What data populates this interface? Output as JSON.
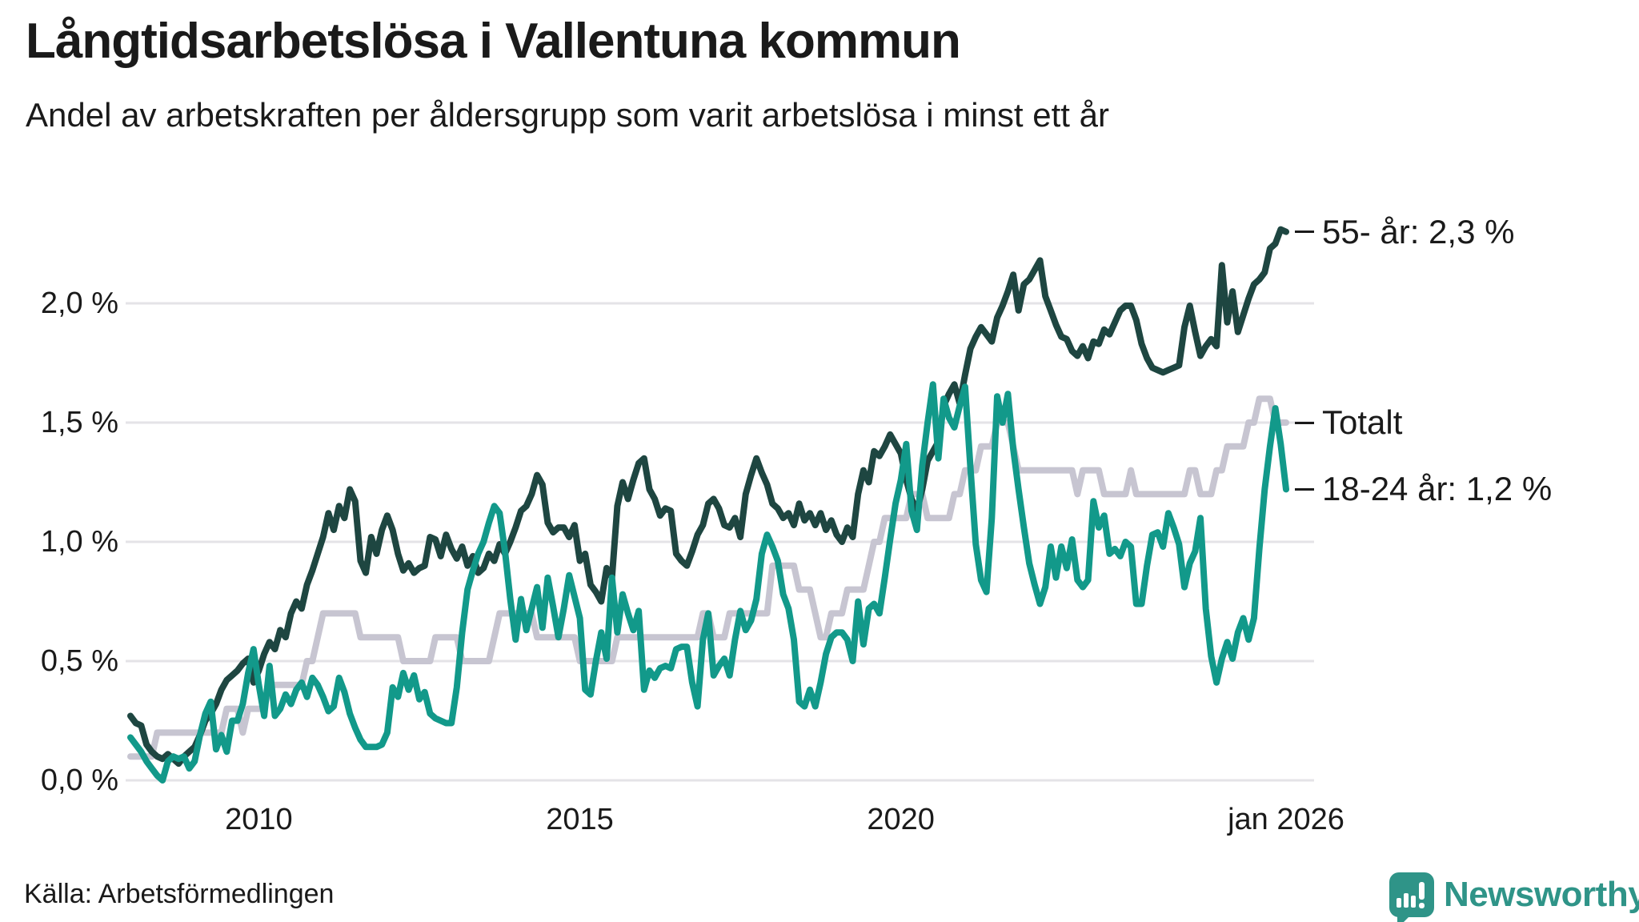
{
  "header": {
    "title": "Långtidsarbetslösa i Vallentuna kommun",
    "subtitle": "Andel av arbetskraften per åldersgrupp som varit arbetslösa i minst ett år"
  },
  "footer": {
    "source": "Källa: Arbetsförmedlingen",
    "brand": "Newsworthy"
  },
  "colors": {
    "series_55": "#1e4641",
    "series_total": "#c7c5d1",
    "series_young": "#12998a",
    "grid": "#e4e3e7",
    "text": "#1a1a1a",
    "brand": "#2f9488"
  },
  "chart_data": {
    "type": "line",
    "title": "Långtidsarbetslösa i Vallentuna kommun",
    "subtitle": "Andel av arbetskraften per åldersgrupp som varit arbetslösa i minst ett år",
    "unit": "%",
    "x_start": "2008-01",
    "x_interval": "month",
    "x_end": "2026-01",
    "ylim": [
      0,
      2.35
    ],
    "grid": true,
    "legend_position": "right-end-labels",
    "y_ticks": [
      {
        "value": 0.0,
        "label": "0,0 %"
      },
      {
        "value": 0.5,
        "label": "0,5 %"
      },
      {
        "value": 1.0,
        "label": "1,0 %"
      },
      {
        "value": 1.5,
        "label": "1,5 %"
      },
      {
        "value": 2.0,
        "label": "2,0 %"
      }
    ],
    "x_ticks": [
      {
        "month_index": 24,
        "label": "2010"
      },
      {
        "month_index": 84,
        "label": "2015"
      },
      {
        "month_index": 144,
        "label": "2020"
      },
      {
        "month_index": 216,
        "label": "jan 2026"
      }
    ],
    "series": [
      {
        "name": "55- år",
        "end_label": "55- år: 2,3 %",
        "end_value": "2,3 %",
        "color": "#1e4641",
        "z": 2,
        "values": [
          0.27,
          0.24,
          0.23,
          0.15,
          0.12,
          0.1,
          0.09,
          0.11,
          0.09,
          0.07,
          0.1,
          0.12,
          0.14,
          0.19,
          0.25,
          0.28,
          0.32,
          0.38,
          0.42,
          0.44,
          0.46,
          0.49,
          0.51,
          0.41,
          0.46,
          0.53,
          0.58,
          0.55,
          0.63,
          0.6,
          0.7,
          0.75,
          0.72,
          0.82,
          0.88,
          0.95,
          1.02,
          1.12,
          1.05,
          1.15,
          1.1,
          1.22,
          1.17,
          0.92,
          0.87,
          1.02,
          0.95,
          1.05,
          1.11,
          1.05,
          0.95,
          0.88,
          0.91,
          0.87,
          0.89,
          0.9,
          1.02,
          1.01,
          0.94,
          1.03,
          0.97,
          0.93,
          0.98,
          0.9,
          0.94,
          0.87,
          0.89,
          0.95,
          0.92,
          0.99,
          0.95,
          1.0,
          1.06,
          1.13,
          1.15,
          1.2,
          1.28,
          1.24,
          1.08,
          1.04,
          1.06,
          1.06,
          1.02,
          1.07,
          0.92,
          0.95,
          0.82,
          0.79,
          0.75,
          0.89,
          0.85,
          1.15,
          1.25,
          1.18,
          1.26,
          1.33,
          1.35,
          1.22,
          1.18,
          1.11,
          1.14,
          1.13,
          0.95,
          0.92,
          0.9,
          0.96,
          1.03,
          1.07,
          1.16,
          1.18,
          1.14,
          1.07,
          1.06,
          1.1,
          1.02,
          1.2,
          1.28,
          1.35,
          1.29,
          1.24,
          1.16,
          1.14,
          1.1,
          1.12,
          1.07,
          1.16,
          1.09,
          1.12,
          1.07,
          1.12,
          1.05,
          1.09,
          1.03,
          1.0,
          1.06,
          1.02,
          1.2,
          1.3,
          1.25,
          1.38,
          1.36,
          1.4,
          1.45,
          1.41,
          1.37,
          1.26,
          1.18,
          1.13,
          1.22,
          1.34,
          1.38,
          1.42,
          1.57,
          1.62,
          1.66,
          1.58,
          1.7,
          1.81,
          1.86,
          1.9,
          1.87,
          1.84,
          1.94,
          1.99,
          2.05,
          2.12,
          1.97,
          2.08,
          2.1,
          2.14,
          2.18,
          2.03,
          1.97,
          1.91,
          1.86,
          1.85,
          1.8,
          1.78,
          1.82,
          1.77,
          1.84,
          1.83,
          1.89,
          1.87,
          1.92,
          1.97,
          1.99,
          1.99,
          1.93,
          1.83,
          1.77,
          1.73,
          1.72,
          1.71,
          1.72,
          1.73,
          1.74,
          1.9,
          1.99,
          1.88,
          1.78,
          1.82,
          1.85,
          1.82,
          2.16,
          1.92,
          2.05,
          1.88,
          1.95,
          2.02,
          2.08,
          2.1,
          2.13,
          2.23,
          2.25,
          2.31,
          2.3
        ]
      },
      {
        "name": "Totalt",
        "end_label": "Totalt",
        "end_value": "1,5 %",
        "color": "#c7c5d1",
        "z": 1,
        "values": [
          0.1,
          0.1,
          0.1,
          0.1,
          0.1,
          0.2,
          0.2,
          0.2,
          0.2,
          0.2,
          0.2,
          0.2,
          0.2,
          0.2,
          0.2,
          0.2,
          0.2,
          0.2,
          0.3,
          0.3,
          0.3,
          0.2,
          0.3,
          0.3,
          0.3,
          0.3,
          0.4,
          0.4,
          0.4,
          0.4,
          0.4,
          0.4,
          0.4,
          0.5,
          0.5,
          0.6,
          0.7,
          0.7,
          0.7,
          0.7,
          0.7,
          0.7,
          0.7,
          0.6,
          0.6,
          0.6,
          0.6,
          0.6,
          0.6,
          0.6,
          0.6,
          0.5,
          0.5,
          0.5,
          0.5,
          0.5,
          0.5,
          0.6,
          0.6,
          0.6,
          0.6,
          0.6,
          0.5,
          0.5,
          0.5,
          0.5,
          0.5,
          0.5,
          0.6,
          0.7,
          0.7,
          0.7,
          0.7,
          0.7,
          0.7,
          0.7,
          0.6,
          0.6,
          0.6,
          0.6,
          0.6,
          0.6,
          0.6,
          0.6,
          0.5,
          0.5,
          0.5,
          0.5,
          0.5,
          0.5,
          0.5,
          0.6,
          0.6,
          0.6,
          0.6,
          0.6,
          0.6,
          0.6,
          0.6,
          0.6,
          0.6,
          0.6,
          0.6,
          0.6,
          0.6,
          0.6,
          0.6,
          0.7,
          0.7,
          0.6,
          0.6,
          0.6,
          0.7,
          0.7,
          0.7,
          0.7,
          0.7,
          0.7,
          0.7,
          0.7,
          0.9,
          0.9,
          0.9,
          0.9,
          0.9,
          0.8,
          0.8,
          0.8,
          0.7,
          0.6,
          0.6,
          0.7,
          0.7,
          0.7,
          0.8,
          0.8,
          0.8,
          0.8,
          0.9,
          1.0,
          1.0,
          1.1,
          1.1,
          1.1,
          1.1,
          1.1,
          1.2,
          1.2,
          1.2,
          1.1,
          1.1,
          1.1,
          1.1,
          1.1,
          1.2,
          1.2,
          1.3,
          1.3,
          1.3,
          1.4,
          1.4,
          1.4,
          1.5,
          1.5,
          1.5,
          1.4,
          1.3,
          1.3,
          1.3,
          1.3,
          1.3,
          1.3,
          1.3,
          1.3,
          1.3,
          1.3,
          1.3,
          1.2,
          1.3,
          1.3,
          1.3,
          1.3,
          1.2,
          1.2,
          1.2,
          1.2,
          1.2,
          1.3,
          1.2,
          1.2,
          1.2,
          1.2,
          1.2,
          1.2,
          1.2,
          1.2,
          1.2,
          1.2,
          1.3,
          1.3,
          1.2,
          1.2,
          1.2,
          1.3,
          1.3,
          1.4,
          1.4,
          1.4,
          1.4,
          1.5,
          1.5,
          1.6,
          1.6,
          1.6,
          1.5,
          1.5,
          1.5
        ]
      },
      {
        "name": "18-24 år",
        "end_label": "18-24 år: 1,2 %",
        "end_value": "1,2 %",
        "color": "#12998a",
        "z": 3,
        "values": [
          0.18,
          0.15,
          0.12,
          0.08,
          0.05,
          0.02,
          0.0,
          0.08,
          0.1,
          0.09,
          0.1,
          0.05,
          0.08,
          0.19,
          0.28,
          0.33,
          0.13,
          0.19,
          0.12,
          0.25,
          0.25,
          0.32,
          0.45,
          0.55,
          0.4,
          0.27,
          0.48,
          0.27,
          0.3,
          0.36,
          0.32,
          0.38,
          0.41,
          0.35,
          0.43,
          0.4,
          0.35,
          0.29,
          0.31,
          0.43,
          0.37,
          0.28,
          0.22,
          0.17,
          0.14,
          0.14,
          0.14,
          0.15,
          0.2,
          0.39,
          0.35,
          0.45,
          0.38,
          0.44,
          0.34,
          0.37,
          0.28,
          0.26,
          0.25,
          0.24,
          0.24,
          0.39,
          0.62,
          0.8,
          0.88,
          0.95,
          1.0,
          1.08,
          1.15,
          1.12,
          0.96,
          0.76,
          0.59,
          0.76,
          0.63,
          0.72,
          0.81,
          0.64,
          0.85,
          0.73,
          0.6,
          0.72,
          0.86,
          0.77,
          0.68,
          0.38,
          0.36,
          0.5,
          0.62,
          0.51,
          0.85,
          0.62,
          0.78,
          0.7,
          0.63,
          0.71,
          0.38,
          0.46,
          0.43,
          0.47,
          0.48,
          0.47,
          0.55,
          0.56,
          0.56,
          0.41,
          0.31,
          0.59,
          0.7,
          0.44,
          0.48,
          0.51,
          0.44,
          0.59,
          0.71,
          0.63,
          0.67,
          0.76,
          0.95,
          1.03,
          0.98,
          0.92,
          0.78,
          0.72,
          0.59,
          0.33,
          0.31,
          0.38,
          0.31,
          0.41,
          0.53,
          0.6,
          0.62,
          0.62,
          0.59,
          0.5,
          0.75,
          0.57,
          0.72,
          0.74,
          0.7,
          0.85,
          1.01,
          1.16,
          1.26,
          1.41,
          1.13,
          1.05,
          1.32,
          1.5,
          1.66,
          1.35,
          1.6,
          1.52,
          1.48,
          1.57,
          1.65,
          1.31,
          0.99,
          0.84,
          0.79,
          1.1,
          1.61,
          1.5,
          1.62,
          1.39,
          1.22,
          1.06,
          0.91,
          0.82,
          0.74,
          0.81,
          0.98,
          0.85,
          0.98,
          0.89,
          1.01,
          0.84,
          0.81,
          0.84,
          1.17,
          1.06,
          1.11,
          0.95,
          0.97,
          0.94,
          1.0,
          0.98,
          0.74,
          0.74,
          0.9,
          1.03,
          1.04,
          0.98,
          1.12,
          1.06,
          0.99,
          0.81,
          0.91,
          0.96,
          1.1,
          0.72,
          0.52,
          0.41,
          0.51,
          0.58,
          0.51,
          0.62,
          0.68,
          0.59,
          0.68,
          0.97,
          1.22,
          1.4,
          1.56,
          1.41,
          1.22
        ]
      }
    ]
  }
}
